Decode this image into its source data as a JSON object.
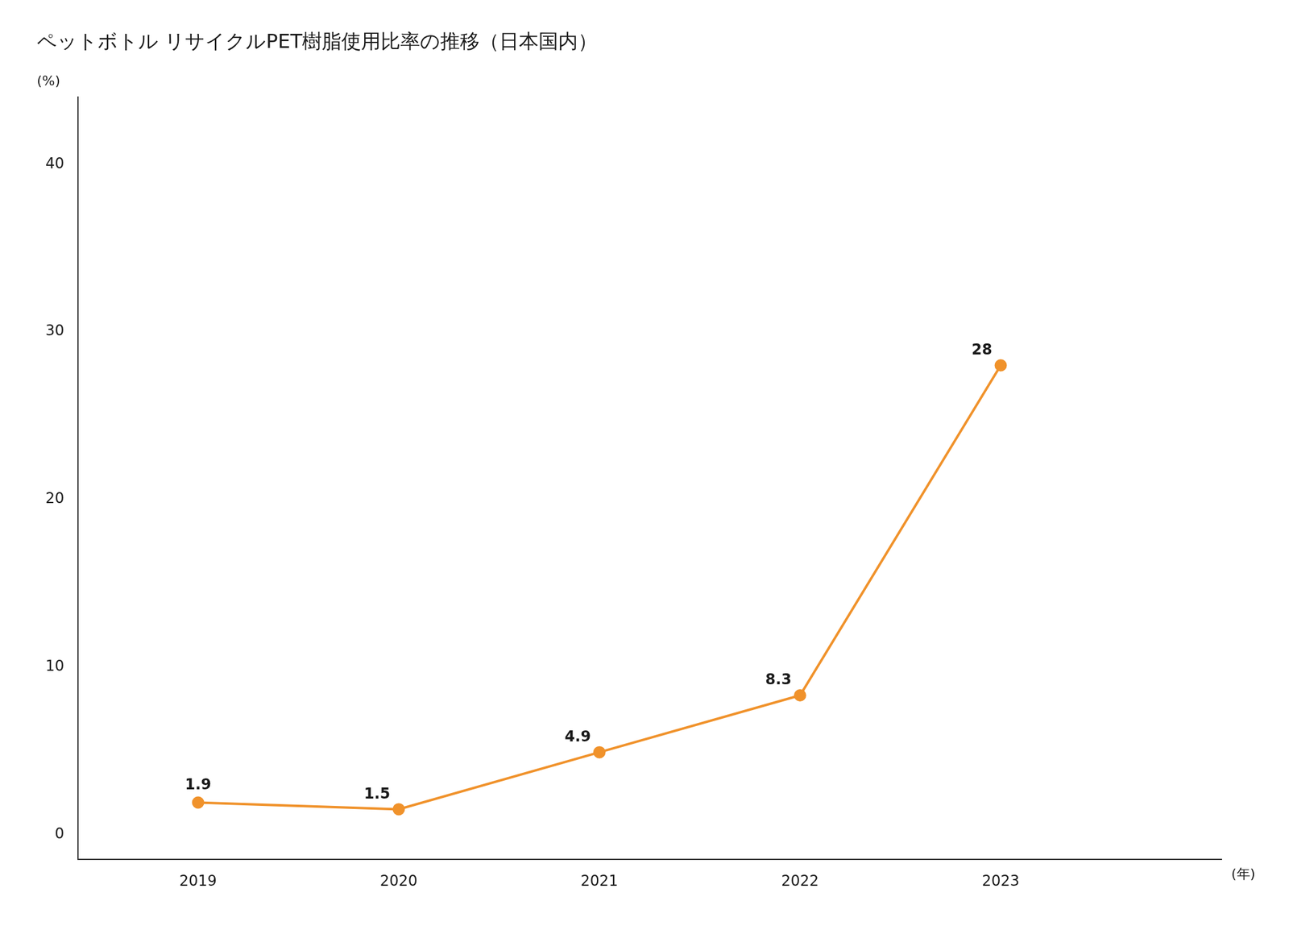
{
  "chart_data": {
    "type": "line",
    "title": "ペットボトル リサイクルPET樹脂使用比率の推移（日本国内）",
    "x": [
      2019,
      2020,
      2021,
      2022,
      2023
    ],
    "values": [
      1.9,
      1.5,
      4.9,
      8.3,
      28
    ],
    "color": "#F0922B",
    "marker": "circle",
    "y_label": "(%)",
    "x_label": "(年)",
    "xlim": [
      2018.4,
      2024.1
    ],
    "xticks": [
      2019,
      2020,
      2021,
      2022,
      2023
    ],
    "ylim": [
      -1.5,
      44
    ],
    "yticks": [
      0,
      10,
      20,
      30,
      40
    ],
    "grid": false,
    "data_labels": true
  }
}
